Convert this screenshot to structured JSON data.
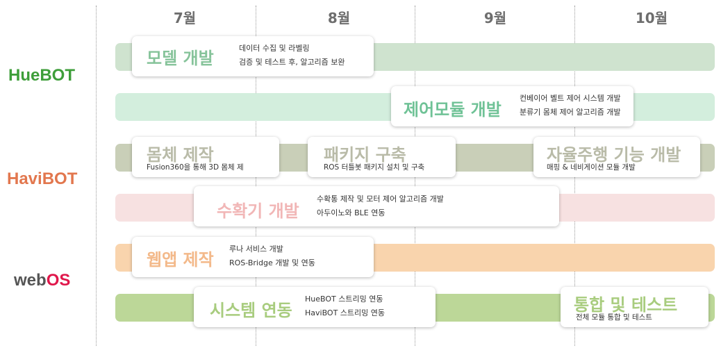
{
  "months": [
    "7월",
    "8월",
    "9월",
    "10월"
  ],
  "groups": {
    "huebot": {
      "label": "HueBOT",
      "color": "#3e9e3a"
    },
    "havibot": {
      "label": "HaviBOT",
      "color": "#e2774e"
    },
    "webos": {
      "label_a": "web",
      "label_b": "OS",
      "color_a": "#555555",
      "color_b": "#e0174b"
    }
  },
  "tasks": [
    {
      "title": "모델 개발",
      "desc1": "데이터 수집 및 라벨링",
      "desc2": "검증 및 테스트 후, 알고리즘 보완",
      "bar_color": "#cfe3cf",
      "title_color": "#86c39a"
    },
    {
      "title": "제어모듈 개발",
      "desc1": "컨베이어 벨트 제어 시스템 개발",
      "desc2": "분류기 몸체 제어 알고리즘 개발",
      "bar_color": "#d3eedd",
      "title_color": "#6fc296"
    },
    {
      "title": "몸체 제작",
      "desc1": "Fusion360을 통해 3D 몸체 제",
      "bar_color": "#c9cfb8",
      "title_color": "#b9bba8"
    },
    {
      "title": "패키지 구축",
      "desc1": "ROS 터틀봇 패키지 설치 및 구축",
      "title_color": "#b9bba8"
    },
    {
      "title": "자율주행 기능 개발",
      "desc1": "매핑 & 네비게이션 모듈 개발",
      "title_color": "#b9bba8"
    },
    {
      "title": "수확기 개발",
      "desc1": "수확통 제작 및  모터 제어 알고리즘 개발",
      "desc2": "아두이노와 BLE 연동",
      "bar_color": "#f7e1e1",
      "title_color": "#f1b6b6"
    },
    {
      "title": "웹앱 제작",
      "desc1": "루나 서비스 개발",
      "desc2": "ROS-Bridge 개발 및 연동",
      "bar_color": "#f9d4ad",
      "title_color": "#f3b98a"
    },
    {
      "title": "시스템 연동",
      "desc1": "HueBOT 스트리밍 연동",
      "desc2": "HaviBOT 스트리밍 연동",
      "bar_color": "#bcd798",
      "title_color": "#a8cc7e"
    },
    {
      "title": "통합 및 테스트",
      "desc1": "전체 모듈 통합 및 테스트",
      "title_color": "#a8cc7e"
    }
  ]
}
